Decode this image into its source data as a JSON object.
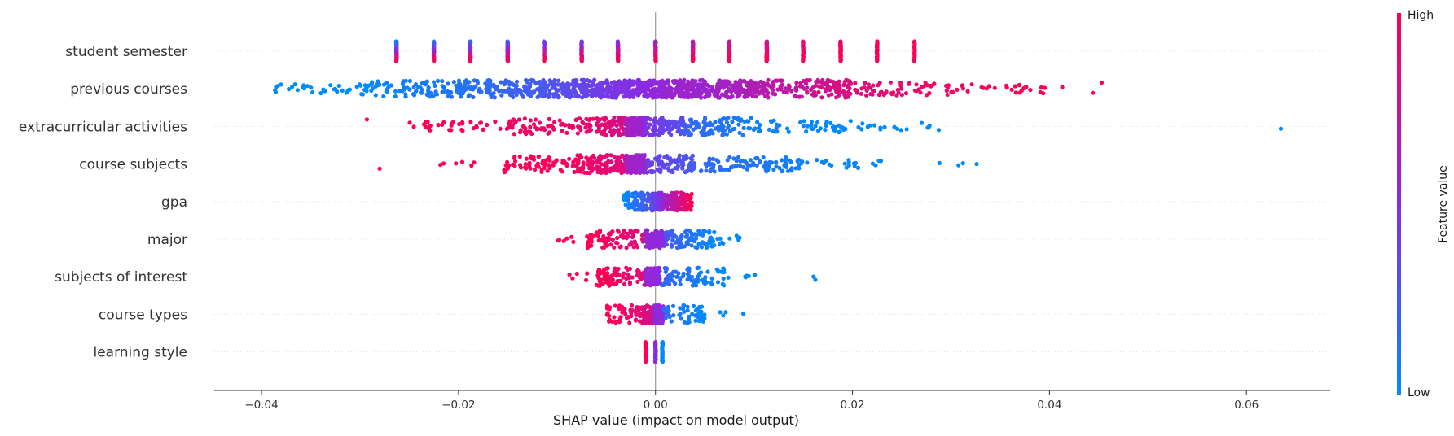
{
  "chart_data": {
    "type": "scatter",
    "subtype": "shap-beeswarm",
    "xlabel": "SHAP value (impact on model output)",
    "xlim": [
      -0.0448,
      0.0685
    ],
    "xticks": [
      {
        "value": -0.04,
        "label": "−0.04"
      },
      {
        "value": -0.02,
        "label": "−0.02"
      },
      {
        "value": 0.0,
        "label": "0.00"
      },
      {
        "value": 0.02,
        "label": "0.02"
      },
      {
        "value": 0.04,
        "label": "0.04"
      },
      {
        "value": 0.06,
        "label": "0.06"
      }
    ],
    "colorbar": {
      "label": "Feature value",
      "high_label": "High",
      "low_label": "Low",
      "low_color": "#008bfb",
      "high_color": "#ff0052"
    },
    "features": [
      {
        "name": "student semester",
        "ranges": [
          [
            -0.0263,
            -0.0263,
            0.0,
            1,
            35
          ],
          [
            -0.0225,
            -0.0225,
            0.08,
            1,
            35
          ],
          [
            -0.0188,
            -0.0188,
            0.15,
            1,
            35
          ],
          [
            -0.015,
            -0.015,
            0.23,
            1,
            35
          ],
          [
            -0.0113,
            -0.0113,
            0.31,
            1,
            35
          ],
          [
            -0.0075,
            -0.0075,
            0.38,
            1,
            35
          ],
          [
            -0.0038,
            -0.0038,
            0.46,
            1,
            35
          ],
          [
            0.0,
            0.0,
            0.54,
            1,
            35
          ],
          [
            0.0038,
            0.0038,
            0.62,
            1,
            35
          ],
          [
            0.0075,
            0.0075,
            0.69,
            1,
            35
          ],
          [
            0.0113,
            0.0113,
            0.77,
            1,
            35
          ],
          [
            0.015,
            0.015,
            0.85,
            1,
            35
          ],
          [
            0.0188,
            0.0188,
            0.92,
            1,
            35
          ],
          [
            0.0225,
            0.0225,
            0.97,
            1,
            35
          ],
          [
            0.0263,
            0.0263,
            1.0,
            1,
            18
          ]
        ]
      },
      {
        "name": "previous courses",
        "ranges": [
          [
            -0.0395,
            -0.03,
            0.0,
            0.0,
            30
          ],
          [
            -0.03,
            -0.02,
            0.0,
            0.12,
            90
          ],
          [
            -0.02,
            -0.012,
            0.12,
            0.25,
            140
          ],
          [
            -0.012,
            -0.004,
            0.25,
            0.45,
            220
          ],
          [
            -0.004,
            0.004,
            0.45,
            0.6,
            340
          ],
          [
            0.004,
            0.012,
            0.55,
            0.7,
            220
          ],
          [
            0.012,
            0.02,
            0.7,
            0.85,
            110
          ],
          [
            0.02,
            0.03,
            0.85,
            0.95,
            60
          ],
          [
            0.03,
            0.04,
            0.95,
            1.0,
            30
          ],
          [
            0.0413,
            0.0413,
            1.0,
            1.0,
            1
          ],
          [
            0.0444,
            0.0444,
            1.0,
            1.0,
            1
          ],
          [
            0.0453,
            0.0453,
            1.0,
            1.0,
            1
          ]
        ]
      },
      {
        "name": "extracurricular activities",
        "ranges": [
          [
            -0.0293,
            -0.0293,
            1.0,
            1.0,
            1
          ],
          [
            -0.026,
            -0.015,
            1.0,
            0.95,
            35
          ],
          [
            -0.015,
            -0.006,
            0.95,
            0.9,
            80
          ],
          [
            -0.006,
            -0.003,
            0.9,
            0.8,
            70
          ],
          [
            -0.003,
            -0.001,
            0.62,
            0.55,
            200
          ],
          [
            -0.001,
            0.003,
            0.45,
            0.3,
            90
          ],
          [
            0.003,
            0.01,
            0.2,
            0.05,
            90
          ],
          [
            0.01,
            0.02,
            0.05,
            0.0,
            50
          ],
          [
            0.02,
            0.029,
            0.0,
            0.0,
            18
          ],
          [
            0.0635,
            0.0635,
            0.0,
            0.0,
            1
          ]
        ]
      },
      {
        "name": "course subjects",
        "ranges": [
          [
            -0.028,
            -0.028,
            1.0,
            1.0,
            1
          ],
          [
            -0.0222,
            -0.018,
            1.0,
            1.0,
            6
          ],
          [
            -0.0155,
            -0.008,
            1.0,
            0.95,
            70
          ],
          [
            -0.008,
            -0.003,
            0.95,
            0.85,
            120
          ],
          [
            -0.003,
            -0.001,
            0.62,
            0.55,
            200
          ],
          [
            -0.001,
            0.004,
            0.4,
            0.25,
            90
          ],
          [
            0.004,
            0.015,
            0.18,
            0.05,
            90
          ],
          [
            0.015,
            0.023,
            0.05,
            0.0,
            20
          ],
          [
            0.027,
            0.034,
            0.0,
            0.0,
            4
          ]
        ]
      },
      {
        "name": "gpa",
        "ranges": [
          [
            -0.0032,
            -0.0005,
            0.0,
            0.3,
            70
          ],
          [
            -0.0005,
            0.001,
            0.3,
            0.6,
            120
          ],
          [
            0.001,
            0.0037,
            0.6,
            1.0,
            110
          ]
        ]
      },
      {
        "name": "major",
        "ranges": [
          [
            -0.0112,
            -0.007,
            1.0,
            1.0,
            6
          ],
          [
            -0.007,
            -0.001,
            1.0,
            0.85,
            90
          ],
          [
            -0.001,
            0.001,
            0.55,
            0.5,
            130
          ],
          [
            0.001,
            0.006,
            0.25,
            0.0,
            90
          ],
          [
            0.006,
            0.0096,
            0.0,
            0.0,
            10
          ]
        ]
      },
      {
        "name": "subjects of interest",
        "ranges": [
          [
            -0.009,
            -0.006,
            1.0,
            1.0,
            5
          ],
          [
            -0.006,
            -0.001,
            1.0,
            0.85,
            90
          ],
          [
            -0.001,
            0.0005,
            0.55,
            0.5,
            120
          ],
          [
            0.0005,
            0.007,
            0.2,
            0.0,
            80
          ],
          [
            0.007,
            0.0102,
            0.0,
            0.0,
            6
          ],
          [
            0.016,
            0.0165,
            0.0,
            0.0,
            2
          ]
        ]
      },
      {
        "name": "course types",
        "ranges": [
          [
            -0.0052,
            -0.002,
            1.0,
            0.9,
            40
          ],
          [
            -0.002,
            -0.0002,
            0.9,
            0.8,
            70
          ],
          [
            -0.0002,
            0.0008,
            0.55,
            0.5,
            120
          ],
          [
            0.0008,
            0.005,
            0.15,
            0.0,
            50
          ],
          [
            0.006,
            0.0097,
            0.0,
            0.0,
            4
          ]
        ]
      },
      {
        "name": "learning style",
        "ranges": [
          [
            -0.001,
            -0.001,
            1.0,
            1.0,
            26
          ],
          [
            0.0,
            0.0,
            0.5,
            0.5,
            26
          ],
          [
            0.0007,
            0.0007,
            0.0,
            0.0,
            26
          ]
        ]
      }
    ]
  }
}
